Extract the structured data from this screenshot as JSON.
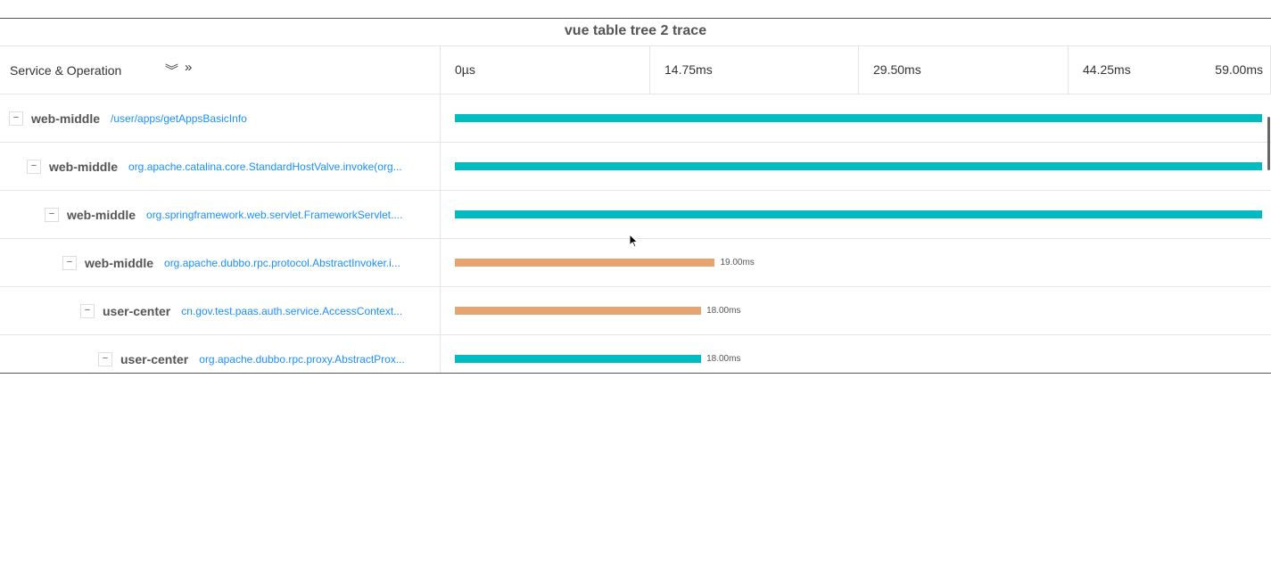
{
  "title": "vue table tree 2 trace",
  "header": {
    "column_label": "Service & Operation",
    "expand_all_icon": "double-chevron-down-icon",
    "expand_icon": "double-chevron-right-icon",
    "ticks": [
      "0µs",
      "14.75ms",
      "29.50ms",
      "44.25ms",
      "59.00ms"
    ]
  },
  "timeline": {
    "total_ms": 59.0
  },
  "colors": {
    "teal": "#00bbbf",
    "orange": "#e8a46e",
    "link": "#1890ff"
  },
  "rows": [
    {
      "depth": 0,
      "toggle": "−",
      "service": "web-middle",
      "operation": "/user/apps/getAppsBasicInfo",
      "start_ms": 0,
      "duration_ms": 59.0,
      "color": "#00bbbf",
      "label": ""
    },
    {
      "depth": 1,
      "toggle": "−",
      "service": "web-middle",
      "operation": "org.apache.catalina.core.StandardHostValve.invoke(org...",
      "start_ms": 0,
      "duration_ms": 59.0,
      "color": "#00bbbf",
      "label": ""
    },
    {
      "depth": 2,
      "toggle": "−",
      "service": "web-middle",
      "operation": "org.springframework.web.servlet.FrameworkServlet....",
      "start_ms": 0,
      "duration_ms": 59.0,
      "color": "#00bbbf",
      "label": ""
    },
    {
      "depth": 3,
      "toggle": "−",
      "service": "web-middle",
      "operation": "org.apache.dubbo.rpc.protocol.AbstractInvoker.i...",
      "start_ms": 0,
      "duration_ms": 19.0,
      "color": "#e8a46e",
      "label": "19.00ms"
    },
    {
      "depth": 4,
      "toggle": "−",
      "service": "user-center",
      "operation": "cn.gov.test.paas.auth.service.AccessContext...",
      "start_ms": 0,
      "duration_ms": 18.0,
      "color": "#e8a46e",
      "label": "18.00ms"
    },
    {
      "depth": 5,
      "toggle": "−",
      "service": "user-center",
      "operation": "org.apache.dubbo.rpc.proxy.AbstractProx...",
      "start_ms": 0,
      "duration_ms": 18.0,
      "color": "#00bbbf",
      "label": "18.00ms"
    }
  ]
}
